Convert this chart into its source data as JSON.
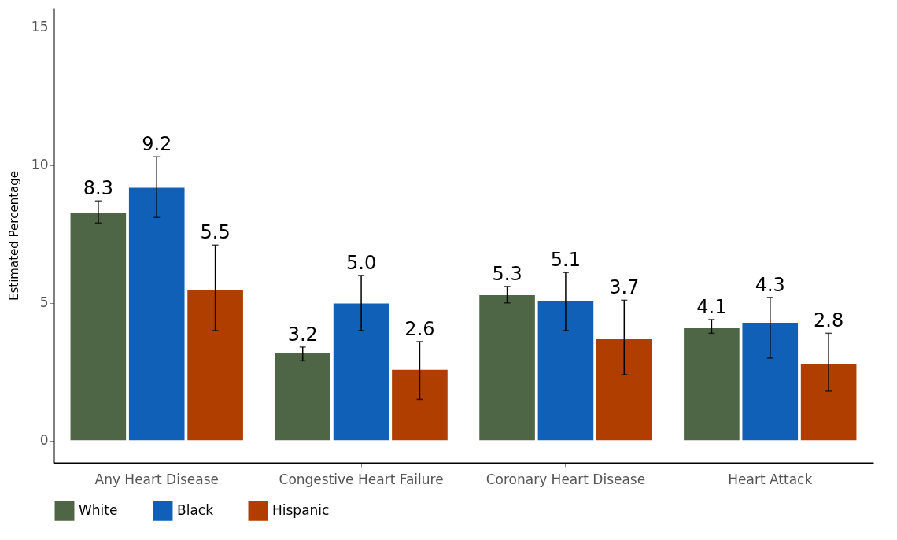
{
  "chart_data": {
    "type": "bar",
    "ylabel": "Estimated Percentage",
    "categories": [
      "Any Heart Disease",
      "Congestive Heart Failure",
      "Coronary Heart Disease",
      "Heart Attack"
    ],
    "series": [
      {
        "name": "White",
        "color": "#4f6646",
        "values": [
          8.3,
          3.2,
          5.3,
          4.1
        ],
        "value_labels": [
          "8.3",
          "3.2",
          "5.3",
          "4.1"
        ],
        "errors": [
          [
            7.9,
            8.7
          ],
          [
            2.9,
            3.4
          ],
          [
            5.0,
            5.6
          ],
          [
            3.9,
            4.4
          ]
        ]
      },
      {
        "name": "Black",
        "color": "#1060b8",
        "values": [
          9.2,
          5.0,
          5.1,
          4.3
        ],
        "value_labels": [
          "9.2",
          "5.0",
          "5.1",
          "4.3"
        ],
        "errors": [
          [
            8.1,
            10.3
          ],
          [
            4.0,
            6.0
          ],
          [
            4.0,
            6.1
          ],
          [
            3.0,
            5.2
          ]
        ]
      },
      {
        "name": "Hispanic",
        "color": "#b03e00",
        "values": [
          5.5,
          2.6,
          3.7,
          2.8
        ],
        "value_labels": [
          "5.5",
          "2.6",
          "3.7",
          "2.8"
        ],
        "errors": [
          [
            4.0,
            7.1
          ],
          [
            1.5,
            3.6
          ],
          [
            2.4,
            5.1
          ],
          [
            1.8,
            3.9
          ]
        ]
      }
    ],
    "ylim": [
      -0.8,
      15.7
    ],
    "yticks": [
      0,
      5,
      10,
      15
    ],
    "grid": false,
    "legend": "bottom"
  }
}
